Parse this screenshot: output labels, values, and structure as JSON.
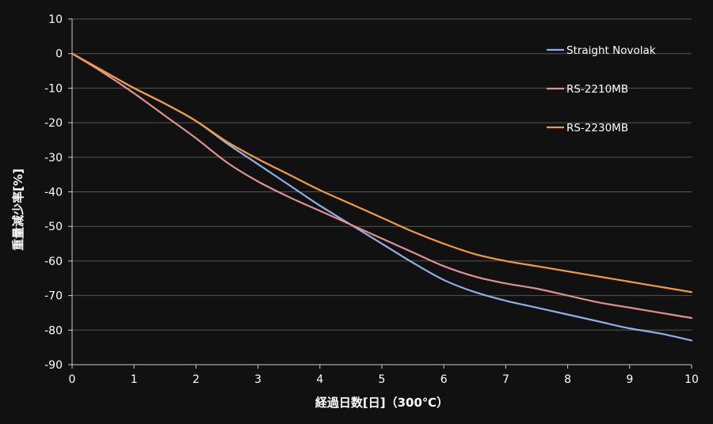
{
  "chart_data": {
    "type": "line",
    "title": "",
    "xlabel": "経過日数[日]（300℃）",
    "ylabel": "重量減少率[%]",
    "xlim": [
      0,
      10
    ],
    "ylim": [
      -90,
      10
    ],
    "x_ticks": [
      0,
      1,
      2,
      3,
      4,
      5,
      6,
      7,
      8,
      9,
      10
    ],
    "y_ticks": [
      10,
      0,
      -10,
      -20,
      -30,
      -40,
      -50,
      -60,
      -70,
      -80,
      -90
    ],
    "grid": true,
    "legend_position": "top-right",
    "series": [
      {
        "name": "Straight Novolak",
        "color": "#8fb0e6",
        "x": [
          0,
          0.5,
          1,
          1.5,
          2,
          2.5,
          3,
          3.5,
          4,
          4.5,
          5,
          5.5,
          6,
          6.5,
          7,
          7.5,
          8,
          8.5,
          9,
          9.5,
          10
        ],
        "y": [
          0,
          -5,
          -10,
          -14.5,
          -19.5,
          -26,
          -32,
          -38,
          -44,
          -49.5,
          -55,
          -60.5,
          -65.5,
          -69,
          -71.5,
          -73.5,
          -75.5,
          -77.5,
          -79.5,
          -81,
          -83
        ]
      },
      {
        "name": "RS-2210MB",
        "color": "#e09090",
        "x": [
          0,
          0.5,
          1,
          1.5,
          2,
          2.5,
          3,
          3.5,
          4,
          4.5,
          5,
          5.5,
          6,
          6.5,
          7,
          7.5,
          8,
          8.5,
          9,
          9.5,
          10
        ],
        "y": [
          0,
          -5.5,
          -11.5,
          -18,
          -24.5,
          -31.5,
          -37,
          -41.5,
          -45.5,
          -49.5,
          -53.5,
          -57.5,
          -61.5,
          -64.5,
          -66.5,
          -68,
          -70,
          -72,
          -73.5,
          -75,
          -76.5
        ]
      },
      {
        "name": "RS-2230MB",
        "color": "#f39c3a",
        "x": [
          0,
          0.5,
          1,
          1.5,
          2,
          2.5,
          3,
          3.5,
          4,
          4.5,
          5,
          5.5,
          6,
          6.5,
          7,
          7.5,
          8,
          8.5,
          9,
          9.5,
          10
        ],
        "y": [
          0,
          -5,
          -10,
          -14.5,
          -19.5,
          -25.5,
          -30.5,
          -35,
          -39.5,
          -43.5,
          -47.5,
          -51.5,
          -55,
          -58,
          -60,
          -61.5,
          -63,
          -64.5,
          -66,
          -67.5,
          -69
        ]
      }
    ]
  }
}
